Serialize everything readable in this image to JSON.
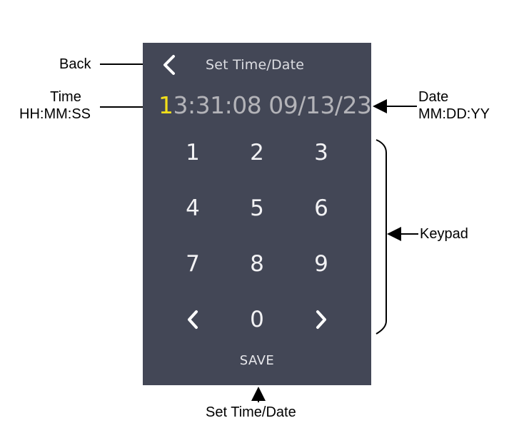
{
  "screen": {
    "title": "Set Time/Date",
    "time_cursor_digit": "1",
    "time_rest": "3:31:08",
    "date": "09/13/23",
    "save_label": "SAVE",
    "colors": {
      "panel": "#434756",
      "cursor_digit": "#f2df1a",
      "readout": "#b3b3b8",
      "key_text": "#f2f2f4"
    }
  },
  "keypad": {
    "keys": [
      "1",
      "2",
      "3",
      "4",
      "5",
      "6",
      "7",
      "8",
      "9",
      "",
      "0",
      ""
    ],
    "left_icon": "chevron-left-icon",
    "right_icon": "chevron-right-icon"
  },
  "callouts": {
    "back": "Back",
    "time_line1": "Time",
    "time_line2": "HH:MM:SS",
    "date_line1": "Date",
    "date_line2": "MM:DD:YY",
    "keypad": "Keypad",
    "set_time_date": "Set Time/Date"
  }
}
